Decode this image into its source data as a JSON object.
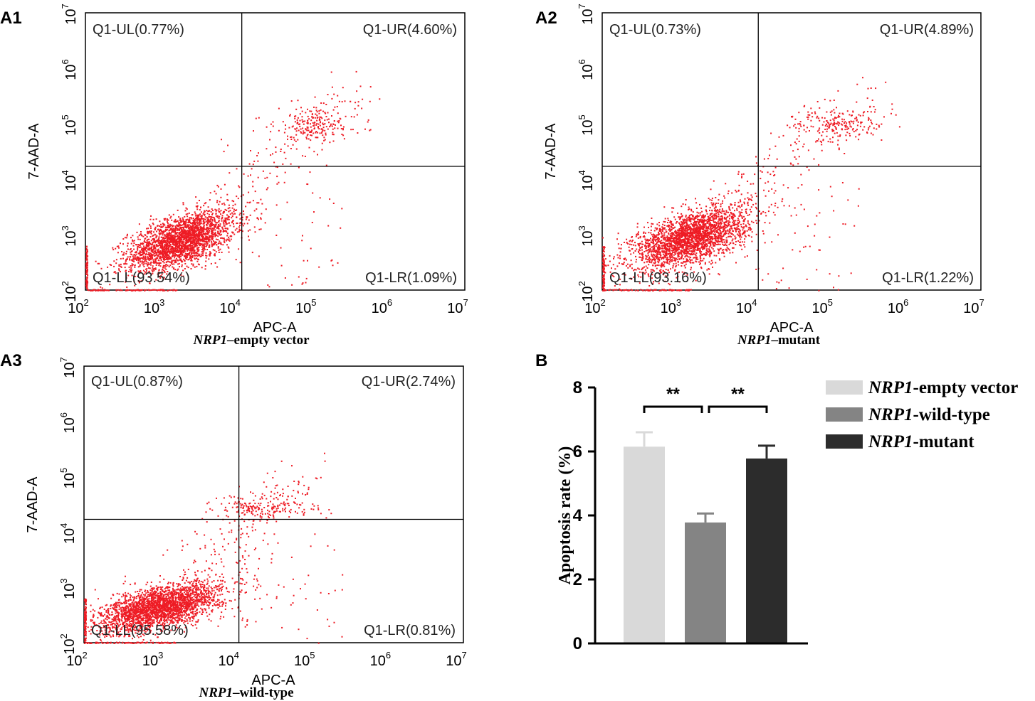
{
  "panels": [
    {
      "label": "A1",
      "caption_gene": "NRP1",
      "caption_rest": "–empty vector",
      "xlabel": "APC-A",
      "ylabel": "7-AAD-A",
      "axis_exponents": [
        "2",
        "3",
        "4",
        "5",
        "6",
        "7"
      ],
      "axis_base": "10",
      "quadrants": {
        "UL": "Q1-UL(0.77%)",
        "UR": "Q1-UR(4.60%)",
        "LL": "Q1-LL(93.54%)",
        "LR": "Q1-LR(1.09%)"
      },
      "gate": {
        "x": 11500,
        "y": 17000
      },
      "cluster": {
        "log_x": 3.25,
        "log_y": 2.9,
        "sd_x": 0.35,
        "sd_y": 0.27
      },
      "upper_cluster": {
        "log_x": 5.05,
        "log_y": 5.0,
        "sd_x": 0.28,
        "sd_y": 0.15
      }
    },
    {
      "label": "A2",
      "caption_gene": "NRP1",
      "caption_rest": "–mutant",
      "xlabel": "APC-A",
      "ylabel": "7-AAD-A",
      "axis_exponents": [
        "2",
        "3",
        "4",
        "5",
        "6",
        "7"
      ],
      "axis_base": "10",
      "quadrants": {
        "UL": "Q1-UL(0.73%)",
        "UR": "Q1-UR(4.89%)",
        "LL": "Q1-LL(93.16%)",
        "LR": "Q1-LR(1.22%)"
      },
      "gate": {
        "x": 11500,
        "y": 17000
      },
      "cluster": {
        "log_x": 3.15,
        "log_y": 2.95,
        "sd_x": 0.38,
        "sd_y": 0.28
      },
      "upper_cluster": {
        "log_x": 5.1,
        "log_y": 4.98,
        "sd_x": 0.3,
        "sd_y": 0.14
      }
    },
    {
      "label": "A3",
      "caption_gene": "NRP1",
      "caption_rest": "–wild-type",
      "xlabel": "APC-A",
      "ylabel": "7-AAD-A",
      "axis_exponents": [
        "2",
        "3",
        "4",
        "5",
        "6",
        "7"
      ],
      "axis_base": "10",
      "quadrants": {
        "UL": "Q1-UL(0.87%)",
        "UR": "Q1-UR(2.74%)",
        "LL": "Q1-LL(95.58%)",
        "LR": "Q1-LR(0.81%)"
      },
      "gate": {
        "x": 11000,
        "y": 17000
      },
      "cluster": {
        "log_x": 3.0,
        "log_y": 2.65,
        "sd_x": 0.4,
        "sd_y": 0.22
      },
      "upper_cluster": {
        "log_x": 4.4,
        "log_y": 4.45,
        "sd_x": 0.35,
        "sd_y": 0.12
      }
    }
  ],
  "chart_data": [
    {
      "type": "scatter",
      "title": "NRP1–empty vector",
      "xlabel": "APC-A",
      "ylabel": "7-AAD-A",
      "xscale": "log",
      "yscale": "log",
      "xlim": [
        100,
        10000000
      ],
      "ylim": [
        100,
        10000000
      ],
      "quadrant_percent": {
        "UL": 0.77,
        "UR": 4.6,
        "LL": 93.54,
        "LR": 1.09
      }
    },
    {
      "type": "scatter",
      "title": "NRP1–mutant",
      "xlabel": "APC-A",
      "ylabel": "7-AAD-A",
      "xscale": "log",
      "yscale": "log",
      "xlim": [
        100,
        10000000
      ],
      "ylim": [
        100,
        10000000
      ],
      "quadrant_percent": {
        "UL": 0.73,
        "UR": 4.89,
        "LL": 93.16,
        "LR": 1.22
      }
    },
    {
      "type": "scatter",
      "title": "NRP1–wild-type",
      "xlabel": "APC-A",
      "ylabel": "7-AAD-A",
      "xscale": "log",
      "yscale": "log",
      "xlim": [
        100,
        10000000
      ],
      "ylim": [
        100,
        10000000
      ],
      "quadrant_percent": {
        "UL": 0.87,
        "UR": 2.74,
        "LL": 95.58,
        "LR": 0.81
      }
    },
    {
      "type": "bar",
      "panel_label": "B",
      "ylabel": "Apoptosis rate (%)",
      "ylim": [
        0,
        8
      ],
      "yticks": [
        "0",
        "2",
        "4",
        "6",
        "8"
      ],
      "categories": [
        "NRP1-empty vector",
        "NRP1-wild-type",
        "NRP1-mutant"
      ],
      "values": [
        6.15,
        3.78,
        5.78
      ],
      "errors": [
        0.45,
        0.28,
        0.4
      ],
      "colors": [
        "#d9d9d9",
        "#848484",
        "#2c2c2c"
      ],
      "legend": [
        {
          "gene": "NRP1",
          "rest": "-empty vector"
        },
        {
          "gene": "NRP1",
          "rest": "-wild-type"
        },
        {
          "gene": "NRP1",
          "rest": "-mutant"
        }
      ],
      "significance": [
        {
          "from": 0,
          "to": 1,
          "label": "**"
        },
        {
          "from": 1,
          "to": 2,
          "label": "**"
        }
      ]
    }
  ],
  "colors": {
    "dots": "#ee1c25",
    "axis": "#000000"
  }
}
